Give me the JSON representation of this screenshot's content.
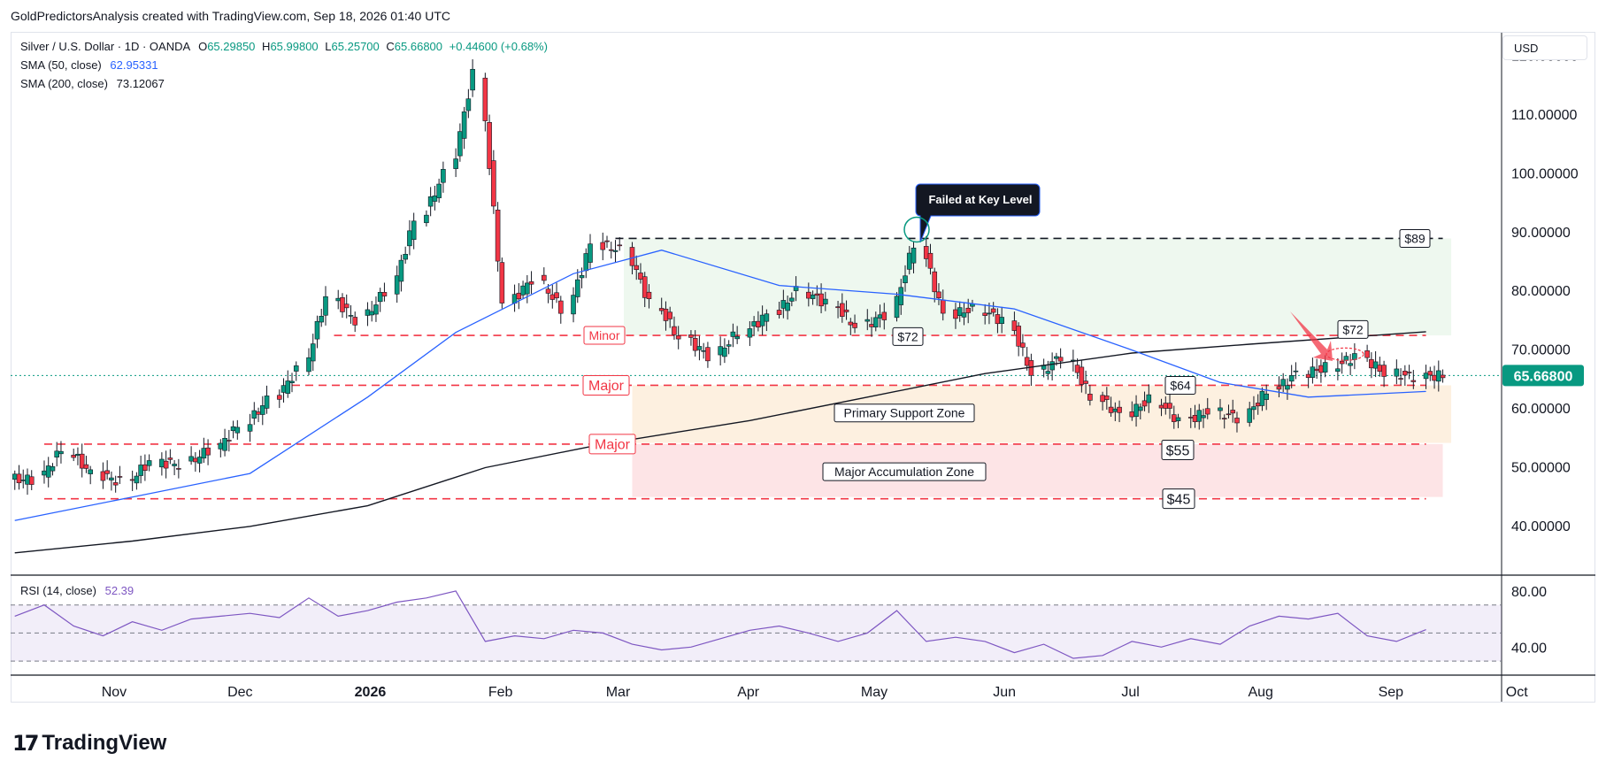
{
  "header": {
    "credit": "GoldPredictorsAnalysis created with TradingView.com, Sep 18, 2026 01:40 UTC"
  },
  "legend": {
    "symbol": "Silver / U.S. Dollar · 1D · OANDA",
    "open_label": "O",
    "open": "65.29850",
    "high_label": "H",
    "high": "65.99800",
    "low_label": "L",
    "low": "65.25700",
    "close_label": "C",
    "close": "65.66800",
    "change": "+0.44600 (+0.68%)",
    "sma50_label": "SMA (50, close)",
    "sma50_value": "62.95331",
    "sma200_label": "SMA (200, close)",
    "sma200_value": "73.12067",
    "rsi_label": "RSI (14, close)",
    "rsi_value": "52.39"
  },
  "currency": "USD",
  "branding": {
    "logo_mark": "17",
    "logo_text": "TradingView"
  },
  "colors": {
    "up": "#089981",
    "down": "#f23645",
    "sma50": "#2962ff",
    "sma200": "#131722",
    "rsi": "#7e57c2",
    "support_zone": "#fdf0e0",
    "accumulation_zone": "#fde4e6",
    "range_zone": "#e8f5e9",
    "last_price": "#089981"
  },
  "chart_data": {
    "type": "candlestick",
    "ylim": [
      32,
      124
    ],
    "y_ticks": [
      "120.00000",
      "110.00000",
      "100.00000",
      "90.00000",
      "80.00000",
      "70.00000",
      "60.00000",
      "50.00000",
      "40.00000"
    ],
    "last_price": "65.66800",
    "x_ticks": [
      "Nov",
      "Dec",
      "2026",
      "Feb",
      "Mar",
      "Apr",
      "May",
      "Jun",
      "Jul",
      "Aug",
      "Sep",
      "Oct"
    ],
    "weekly_closes": [
      [
        "2025-10-13",
        48.0
      ],
      [
        "2025-10-20",
        53.0
      ],
      [
        "2025-10-27",
        49.0
      ],
      [
        "2025-11-03",
        47.5
      ],
      [
        "2025-11-10",
        51.0
      ],
      [
        "2025-11-17",
        50.5
      ],
      [
        "2025-11-24",
        53.0
      ],
      [
        "2025-12-01",
        57.0
      ],
      [
        "2025-12-08",
        61.5
      ],
      [
        "2025-12-15",
        66.5
      ],
      [
        "2025-12-22",
        79.0
      ],
      [
        "2025-12-29",
        75.0
      ],
      [
        "2026-01-05",
        80.0
      ],
      [
        "2026-01-12",
        92.0
      ],
      [
        "2026-01-19",
        100.0
      ],
      [
        "2026-01-26",
        117.0
      ],
      [
        "2026-02-02",
        78.0
      ],
      [
        "2026-02-09",
        82.0
      ],
      [
        "2026-02-16",
        77.0
      ],
      [
        "2026-02-23",
        88.0
      ],
      [
        "2026-03-02",
        87.0
      ],
      [
        "2026-03-09",
        78.0
      ],
      [
        "2026-03-16",
        72.0
      ],
      [
        "2026-03-23",
        69.0
      ],
      [
        "2026-03-30",
        73.0
      ],
      [
        "2026-04-06",
        76.0
      ],
      [
        "2026-04-13",
        80.0
      ],
      [
        "2026-04-20",
        78.0
      ],
      [
        "2026-04-27",
        74.0
      ],
      [
        "2026-05-04",
        76.0
      ],
      [
        "2026-05-11",
        88.0
      ],
      [
        "2026-05-18",
        76.0
      ],
      [
        "2026-05-25",
        77.0
      ],
      [
        "2026-06-01",
        75.0
      ],
      [
        "2026-06-08",
        66.0
      ],
      [
        "2026-06-15",
        69.0
      ],
      [
        "2026-06-22",
        62.0
      ],
      [
        "2026-06-29",
        59.0
      ],
      [
        "2026-07-06",
        61.5
      ],
      [
        "2026-07-13",
        58.0
      ],
      [
        "2026-07-20",
        59.5
      ],
      [
        "2026-07-27",
        58.5
      ],
      [
        "2026-08-03",
        63.0
      ],
      [
        "2026-08-10",
        66.0
      ],
      [
        "2026-08-17",
        67.0
      ],
      [
        "2026-08-24",
        69.0
      ],
      [
        "2026-08-31",
        66.0
      ],
      [
        "2026-09-07",
        65.5
      ],
      [
        "2026-09-14",
        65.668
      ]
    ],
    "sma50": [
      [
        "2025-10-13",
        41.0
      ],
      [
        "2025-11-10",
        45.0
      ],
      [
        "2025-12-08",
        49.0
      ],
      [
        "2026-01-05",
        62.0
      ],
      [
        "2026-01-26",
        73.0
      ],
      [
        "2026-02-23",
        83.0
      ],
      [
        "2026-03-16",
        87.0
      ],
      [
        "2026-04-13",
        81.0
      ],
      [
        "2026-05-11",
        79.5
      ],
      [
        "2026-06-08",
        77.0
      ],
      [
        "2026-07-06",
        70.0
      ],
      [
        "2026-07-27",
        64.5
      ],
      [
        "2026-08-17",
        62.0
      ],
      [
        "2026-09-14",
        62.953
      ]
    ],
    "sma200": [
      [
        "2025-10-13",
        35.5
      ],
      [
        "2025-11-10",
        37.5
      ],
      [
        "2025-12-08",
        40.0
      ],
      [
        "2026-01-05",
        43.5
      ],
      [
        "2026-02-02",
        50.0
      ],
      [
        "2026-03-02",
        54.0
      ],
      [
        "2026-04-06",
        58.0
      ],
      [
        "2026-05-04",
        62.0
      ],
      [
        "2026-06-01",
        66.0
      ],
      [
        "2026-07-06",
        69.5
      ],
      [
        "2026-08-03",
        71.0
      ],
      [
        "2026-09-14",
        73.12
      ]
    ],
    "rsi": {
      "ylim": [
        20,
        90
      ],
      "ticks": [
        "80.00",
        "40.00"
      ],
      "bands": [
        70,
        50,
        30
      ],
      "current": "52.39",
      "values": [
        [
          "2025-10-13",
          62
        ],
        [
          "2025-10-20",
          70
        ],
        [
          "2025-10-27",
          55
        ],
        [
          "2025-11-03",
          48
        ],
        [
          "2025-11-10",
          58
        ],
        [
          "2025-11-17",
          52
        ],
        [
          "2025-11-24",
          60
        ],
        [
          "2025-12-01",
          62
        ],
        [
          "2025-12-08",
          64
        ],
        [
          "2025-12-15",
          61
        ],
        [
          "2025-12-22",
          75
        ],
        [
          "2025-12-29",
          62
        ],
        [
          "2026-01-05",
          66
        ],
        [
          "2026-01-12",
          72
        ],
        [
          "2026-01-19",
          75
        ],
        [
          "2026-01-26",
          80
        ],
        [
          "2026-02-02",
          44
        ],
        [
          "2026-02-09",
          48
        ],
        [
          "2026-02-16",
          46
        ],
        [
          "2026-02-23",
          52
        ],
        [
          "2026-03-02",
          50
        ],
        [
          "2026-03-09",
          42
        ],
        [
          "2026-03-16",
          38
        ],
        [
          "2026-03-23",
          40
        ],
        [
          "2026-03-30",
          46
        ],
        [
          "2026-04-06",
          52
        ],
        [
          "2026-04-13",
          55
        ],
        [
          "2026-04-20",
          50
        ],
        [
          "2026-04-27",
          44
        ],
        [
          "2026-05-04",
          50
        ],
        [
          "2026-05-11",
          66
        ],
        [
          "2026-05-18",
          44
        ],
        [
          "2026-05-25",
          47
        ],
        [
          "2026-06-01",
          44
        ],
        [
          "2026-06-08",
          36
        ],
        [
          "2026-06-15",
          42
        ],
        [
          "2026-06-22",
          32
        ],
        [
          "2026-06-29",
          34
        ],
        [
          "2026-07-06",
          44
        ],
        [
          "2026-07-13",
          40
        ],
        [
          "2026-07-20",
          46
        ],
        [
          "2026-07-27",
          42
        ],
        [
          "2026-08-03",
          55
        ],
        [
          "2026-08-10",
          62
        ],
        [
          "2026-08-17",
          60
        ],
        [
          "2026-08-24",
          64
        ],
        [
          "2026-08-31",
          48
        ],
        [
          "2026-09-07",
          44
        ],
        [
          "2026-09-14",
          52.39
        ]
      ]
    }
  },
  "annotations": {
    "level_89": "$89",
    "level_72": "$72",
    "level_72b": "$72",
    "level_64": "$64",
    "level_55": "$55",
    "level_45": "$45",
    "minor": "Minor",
    "major1": "Major",
    "major2": "Major",
    "support_zone": "Primary Support Zone",
    "accumulation_zone": "Major Accumulation Zone",
    "callout": "Failed at Key Level"
  }
}
